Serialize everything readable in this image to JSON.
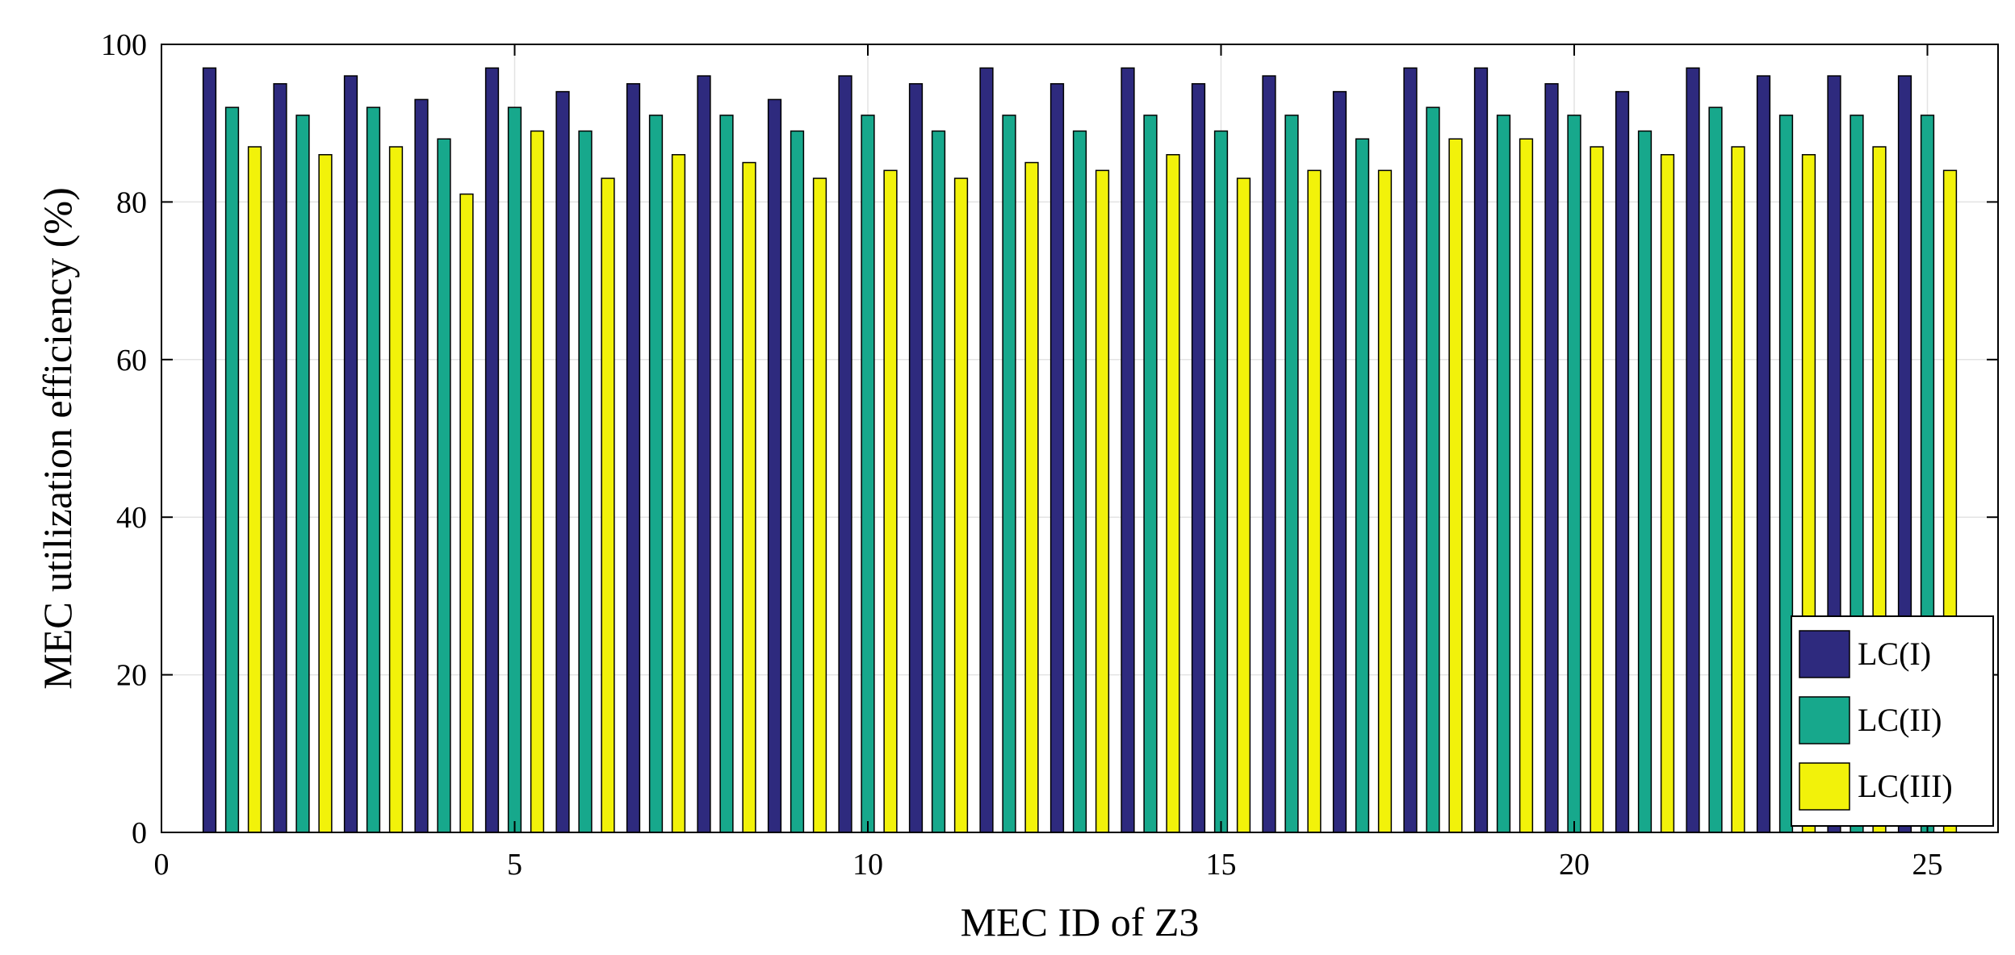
{
  "chart_data": {
    "type": "bar",
    "xlabel": "MEC ID of Z3",
    "ylabel": "MEC utilization efficiency (%)",
    "xlim": [
      0,
      26
    ],
    "ylim": [
      0,
      100
    ],
    "xticks": [
      0,
      5,
      10,
      15,
      20,
      25
    ],
    "yticks": [
      0,
      20,
      40,
      60,
      80,
      100
    ],
    "grid": true,
    "legend_position": "bottom-right",
    "categories": [
      1,
      2,
      3,
      4,
      5,
      6,
      7,
      8,
      9,
      10,
      11,
      12,
      13,
      14,
      15,
      16,
      17,
      18,
      19,
      20,
      21,
      22,
      23,
      24,
      25
    ],
    "series": [
      {
        "name": "LC(I)",
        "color": "#2e2a7e",
        "values": [
          97,
          95,
          96,
          93,
          97,
          94,
          95,
          96,
          93,
          96,
          95,
          97,
          95,
          97,
          95,
          96,
          94,
          97,
          97,
          95,
          94,
          97,
          96,
          96,
          96
        ]
      },
      {
        "name": "LC(II)",
        "color": "#17a88c",
        "values": [
          92,
          91,
          92,
          88,
          92,
          89,
          91,
          91,
          89,
          91,
          89,
          91,
          89,
          91,
          89,
          91,
          88,
          92,
          91,
          91,
          89,
          92,
          91,
          91,
          91
        ]
      },
      {
        "name": "LC(III)",
        "color": "#f2f20a",
        "values": [
          87,
          86,
          87,
          81,
          89,
          83,
          86,
          85,
          83,
          84,
          83,
          85,
          84,
          86,
          83,
          84,
          84,
          88,
          88,
          87,
          86,
          87,
          86,
          87,
          84
        ]
      }
    ]
  }
}
